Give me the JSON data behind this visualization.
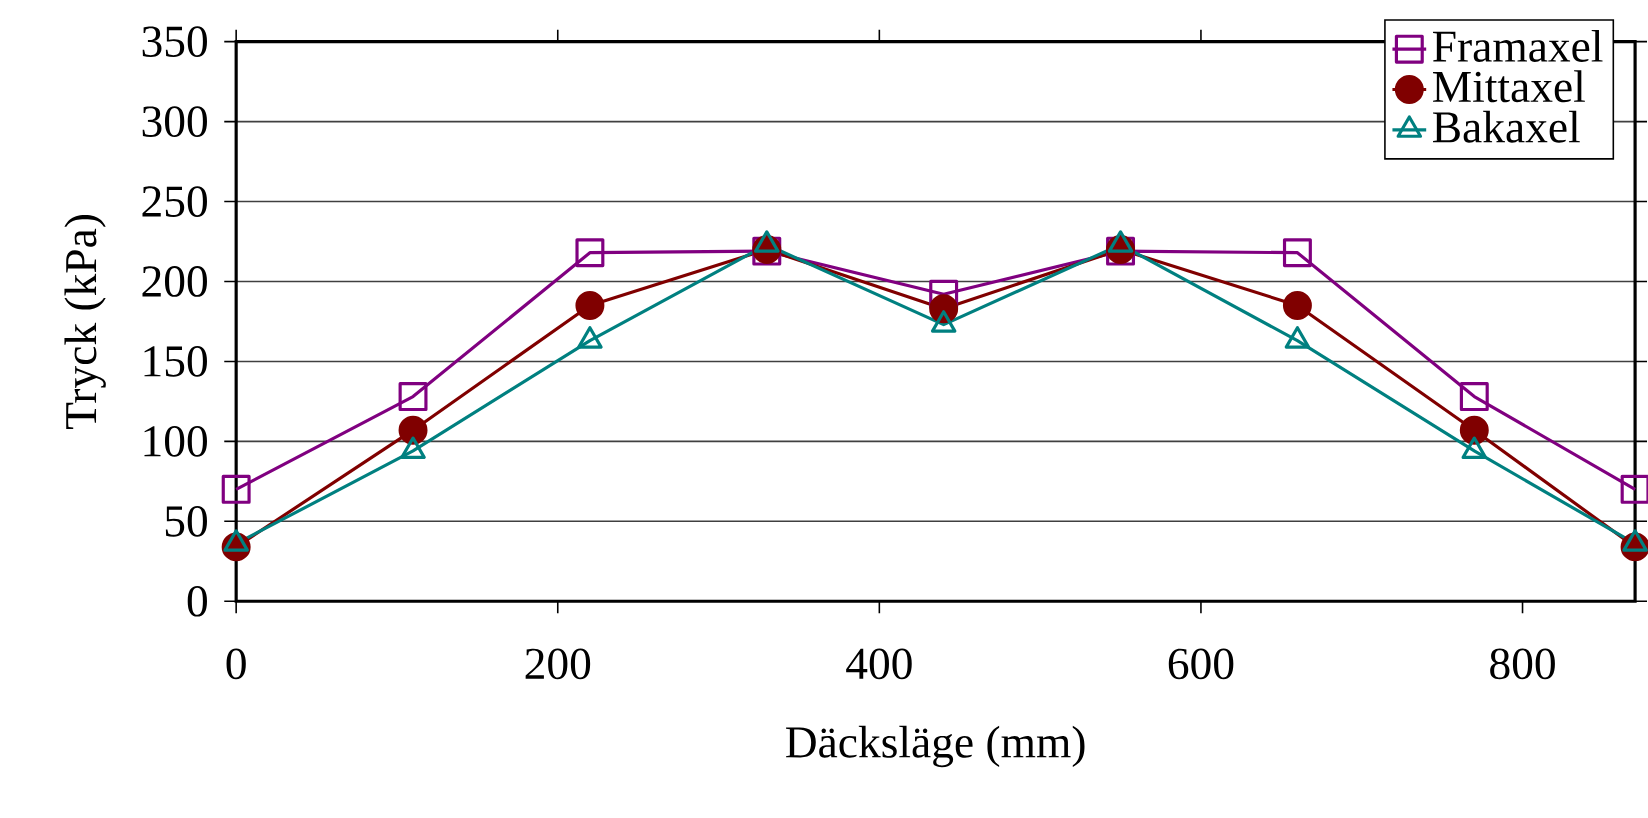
{
  "chart_data": {
    "type": "line",
    "xlabel": "Däcksläge (mm)",
    "ylabel": "Tryck (kPa)",
    "x": [
      0,
      110,
      220,
      330,
      440,
      550,
      660,
      770,
      870
    ],
    "series": [
      {
        "name": "Framaxel",
        "color": "#800080",
        "marker": "square",
        "values": [
          70,
          128,
          218,
          219,
          192,
          219,
          218,
          128,
          70
        ]
      },
      {
        "name": "Mittaxel",
        "color": "#800000",
        "marker": "circle",
        "values": [
          34,
          107,
          185,
          220,
          183,
          220,
          185,
          107,
          34
        ]
      },
      {
        "name": "Bakaxel",
        "color": "#008080",
        "marker": "triangle",
        "values": [
          36,
          94,
          163,
          223,
          173,
          223,
          163,
          94,
          36
        ]
      }
    ],
    "xlim": [
      0,
      870
    ],
    "ylim": [
      0,
      350
    ],
    "xticks": [
      0,
      200,
      400,
      600,
      800
    ],
    "yticks": [
      0,
      50,
      100,
      150,
      200,
      250,
      300,
      350
    ],
    "grid": "y",
    "legend": "top right",
    "line_style": "solid"
  }
}
